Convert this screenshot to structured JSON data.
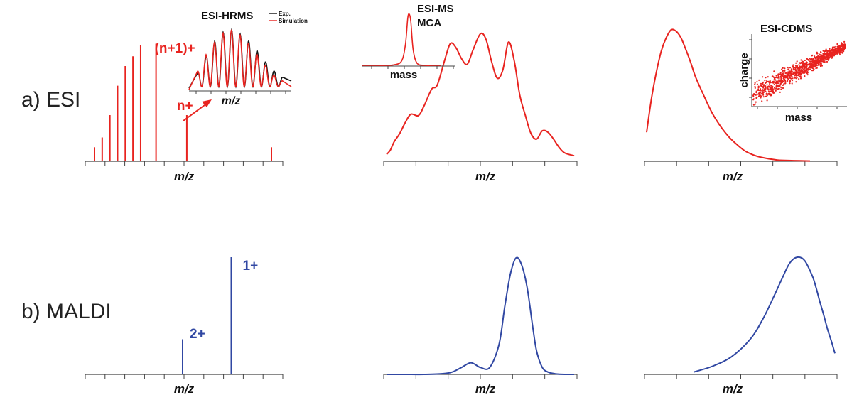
{
  "row_labels": {
    "esi": "a) ESI",
    "maldi": "b) MALDI"
  },
  "colors": {
    "esi": "#e8231f",
    "maldi": "#3148a3",
    "axis": "#444444",
    "exp": "#111111"
  },
  "chart_data": [
    {
      "id": "esi_hrms",
      "type": "bar",
      "xlabel": "m/z",
      "x": [
        1,
        2,
        3,
        4,
        5,
        6,
        7,
        9,
        13,
        24
      ],
      "values": [
        10,
        17,
        33,
        54,
        68,
        75,
        83,
        84,
        33,
        10
      ],
      "ylim": [
        0,
        100
      ],
      "labels": [
        {
          "text": "(n+1)+",
          "x": 9
        },
        {
          "text": "n+",
          "x": 13
        }
      ],
      "inset": {
        "title": "ESI-HRMS",
        "xlabel": "m/z",
        "type": "line",
        "legend": [
          {
            "name": "Exp.",
            "color": "#111111"
          },
          {
            "name": "Simulation",
            "color": "#e8231f"
          }
        ],
        "x": [
          0,
          1,
          2,
          3,
          4,
          5,
          6,
          7,
          8,
          9,
          10
        ],
        "exp_peaks": [
          22,
          50,
          73,
          88,
          92,
          85,
          74,
          58,
          40,
          25,
          15
        ],
        "sim_peaks": [
          25,
          52,
          72,
          87,
          92,
          84,
          70,
          52,
          34,
          18,
          9
        ]
      }
    },
    {
      "id": "esi_ms_mca",
      "type": "line",
      "xlabel": "m/z",
      "x": [
        0,
        2,
        4,
        7,
        10,
        13,
        17,
        20,
        24,
        27,
        31,
        34,
        37,
        40,
        43,
        46,
        50,
        53,
        56,
        59,
        62,
        65,
        68,
        71,
        74,
        77,
        80,
        83,
        86,
        89,
        92,
        95,
        100
      ],
      "y": [
        5,
        8,
        14,
        20,
        28,
        34,
        33,
        40,
        52,
        55,
        73,
        85,
        82,
        74,
        70,
        80,
        92,
        88,
        72,
        60,
        66,
        86,
        73,
        48,
        33,
        20,
        16,
        22,
        21,
        16,
        10,
        6,
        4
      ],
      "ylim": [
        0,
        100
      ],
      "inset": {
        "title": "ESI-MS\nMCA",
        "xlabel": "mass",
        "type": "line",
        "x": [
          0,
          10,
          20,
          30,
          40,
          50,
          55,
          58,
          60,
          62,
          65,
          70,
          80,
          90,
          100
        ],
        "y": [
          0,
          0,
          0,
          0,
          1,
          8,
          40,
          92,
          100,
          85,
          30,
          4,
          0,
          0,
          0
        ]
      }
    },
    {
      "id": "esi_cdms",
      "type": "line",
      "xlabel": "m/z",
      "x": [
        0,
        3,
        6,
        9,
        12,
        15,
        18,
        21,
        24,
        27,
        30,
        35,
        40,
        45,
        50,
        55,
        60,
        65,
        70,
        80,
        90,
        100
      ],
      "y": [
        22,
        48,
        68,
        84,
        94,
        100,
        99,
        94,
        85,
        75,
        64,
        50,
        37,
        27,
        19,
        13,
        8,
        5,
        3,
        1,
        0.5,
        0.2
      ],
      "ylim": [
        0,
        100
      ],
      "inset": {
        "title": "ESI-CDMS",
        "type": "scatter",
        "xlabel": "mass",
        "ylabel": "charge",
        "trend": {
          "x": [
            0,
            100
          ],
          "y": [
            15,
            85
          ]
        }
      }
    },
    {
      "id": "maldi_stick",
      "type": "bar",
      "xlabel": "m/z",
      "x": [
        50,
        75
      ],
      "values": [
        30,
        100
      ],
      "ylim": [
        0,
        100
      ],
      "xlim": [
        0,
        100
      ],
      "labels": [
        {
          "text": "2+",
          "x": 50
        },
        {
          "text": "1+",
          "x": 75
        }
      ]
    },
    {
      "id": "maldi_mca",
      "type": "line",
      "xlabel": "m/z",
      "x": [
        0,
        10,
        20,
        30,
        35,
        40,
        45,
        50,
        55,
        60,
        63,
        66,
        69,
        72,
        75,
        78,
        80,
        83,
        86,
        90,
        95,
        100
      ],
      "y": [
        0,
        0,
        0,
        0.6,
        2,
        6,
        10,
        6,
        6,
        26,
        58,
        86,
        100,
        94,
        74,
        40,
        20,
        6,
        2,
        0.5,
        0,
        0
      ],
      "ylim": [
        0,
        100
      ]
    },
    {
      "id": "maldi_cdms",
      "type": "line",
      "xlabel": "m/z",
      "x": [
        25,
        35,
        45,
        55,
        62,
        68,
        72,
        76,
        80,
        84,
        88,
        90,
        92,
        94,
        96,
        98,
        100
      ],
      "y": [
        2,
        7,
        15,
        30,
        48,
        68,
        82,
        95,
        100,
        97,
        84,
        74,
        62,
        51,
        39,
        29,
        18
      ],
      "ylim": [
        0,
        100
      ]
    }
  ]
}
